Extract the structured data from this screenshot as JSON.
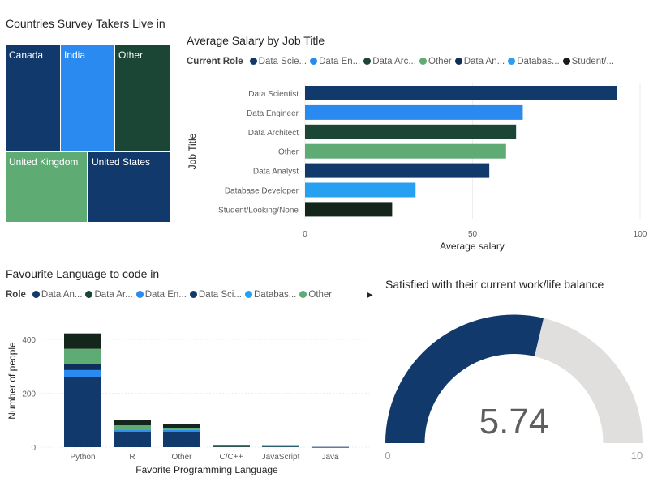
{
  "treemap": {
    "title": "Countries Survey Takers Live in",
    "tiles": [
      {
        "label": "Canada",
        "color": "#12396b"
      },
      {
        "label": "India",
        "color": "#2a8af0"
      },
      {
        "label": "Other",
        "color": "#1b4535"
      },
      {
        "label": "United Kingdom",
        "color": "#5fab74"
      },
      {
        "label": "United States",
        "color": "#12396b"
      }
    ]
  },
  "salary": {
    "title": "Average Salary by Job Title",
    "legend_title": "Current Role",
    "legend": [
      {
        "label": "Data Scie...",
        "color": "#12396b"
      },
      {
        "label": "Data En...",
        "color": "#2a8af0"
      },
      {
        "label": "Data Arc...",
        "color": "#1b4535"
      },
      {
        "label": "Other",
        "color": "#5fab74"
      },
      {
        "label": "Data An...",
        "color": "#0f2e5a"
      },
      {
        "label": "Databas...",
        "color": "#26a0f0"
      },
      {
        "label": "Student/...",
        "color": "#1a1a1a"
      }
    ],
    "chart_data": {
      "type": "bar",
      "orientation": "horizontal",
      "categories": [
        "Data Scientist",
        "Data Engineer",
        "Data Architect",
        "Other",
        "Data Analyst",
        "Database Developer",
        "Student/Looking/None"
      ],
      "values": [
        93,
        65,
        63,
        60,
        55,
        33,
        26
      ],
      "colors": [
        "#12396b",
        "#2a8af0",
        "#1b4535",
        "#5fab74",
        "#12396b",
        "#26a0f0",
        "#14261c"
      ],
      "xlabel": "Average salary",
      "ylabel": "Job Title",
      "xlim": [
        0,
        100
      ],
      "xticks": [
        "0",
        "50",
        "100"
      ]
    }
  },
  "language": {
    "title": "Favourite Language to code in",
    "legend_title": "Role",
    "legend": [
      {
        "label": "Data An...",
        "color": "#12396b"
      },
      {
        "label": "Data Ar...",
        "color": "#1b4535"
      },
      {
        "label": "Data En...",
        "color": "#2a8af0"
      },
      {
        "label": "Data Sci...",
        "color": "#12396b"
      },
      {
        "label": "Databas...",
        "color": "#26a0f0"
      },
      {
        "label": "Other",
        "color": "#5fab74"
      }
    ],
    "chart_data": {
      "type": "bar",
      "stacked": true,
      "categories": [
        "Python",
        "R",
        "Other",
        "C/C++",
        "JavaScript",
        "Java"
      ],
      "series": [
        {
          "name": "Data Sci...",
          "color": "#12396b",
          "values": [
            259,
            58,
            58,
            3,
            3,
            1
          ]
        },
        {
          "name": "Data En...",
          "color": "#2a8af0",
          "values": [
            27,
            5,
            6,
            0,
            0,
            0
          ]
        },
        {
          "name": "Data An...",
          "color": "#0f2e5a",
          "values": [
            21,
            0,
            0,
            0,
            0,
            0
          ]
        },
        {
          "name": "Other",
          "color": "#5fab74",
          "values": [
            58,
            18,
            8,
            1,
            2,
            0
          ]
        },
        {
          "name": "Data Ar...",
          "color": "#14261c",
          "values": [
            57,
            20,
            14,
            1,
            0,
            0
          ]
        }
      ],
      "xlabel": "Favorite Programming Language",
      "ylabel": "Number of people",
      "ylim": [
        0,
        420
      ],
      "yticks": [
        "0",
        "200",
        "400"
      ]
    }
  },
  "gauge": {
    "title": "Satisfied with their current work/life balance",
    "value": 5.74,
    "value_label": "5.74",
    "min": 0,
    "max": 10,
    "min_label": "0",
    "max_label": "10",
    "fill_color": "#12396b",
    "track_color": "#e1dfdd"
  }
}
